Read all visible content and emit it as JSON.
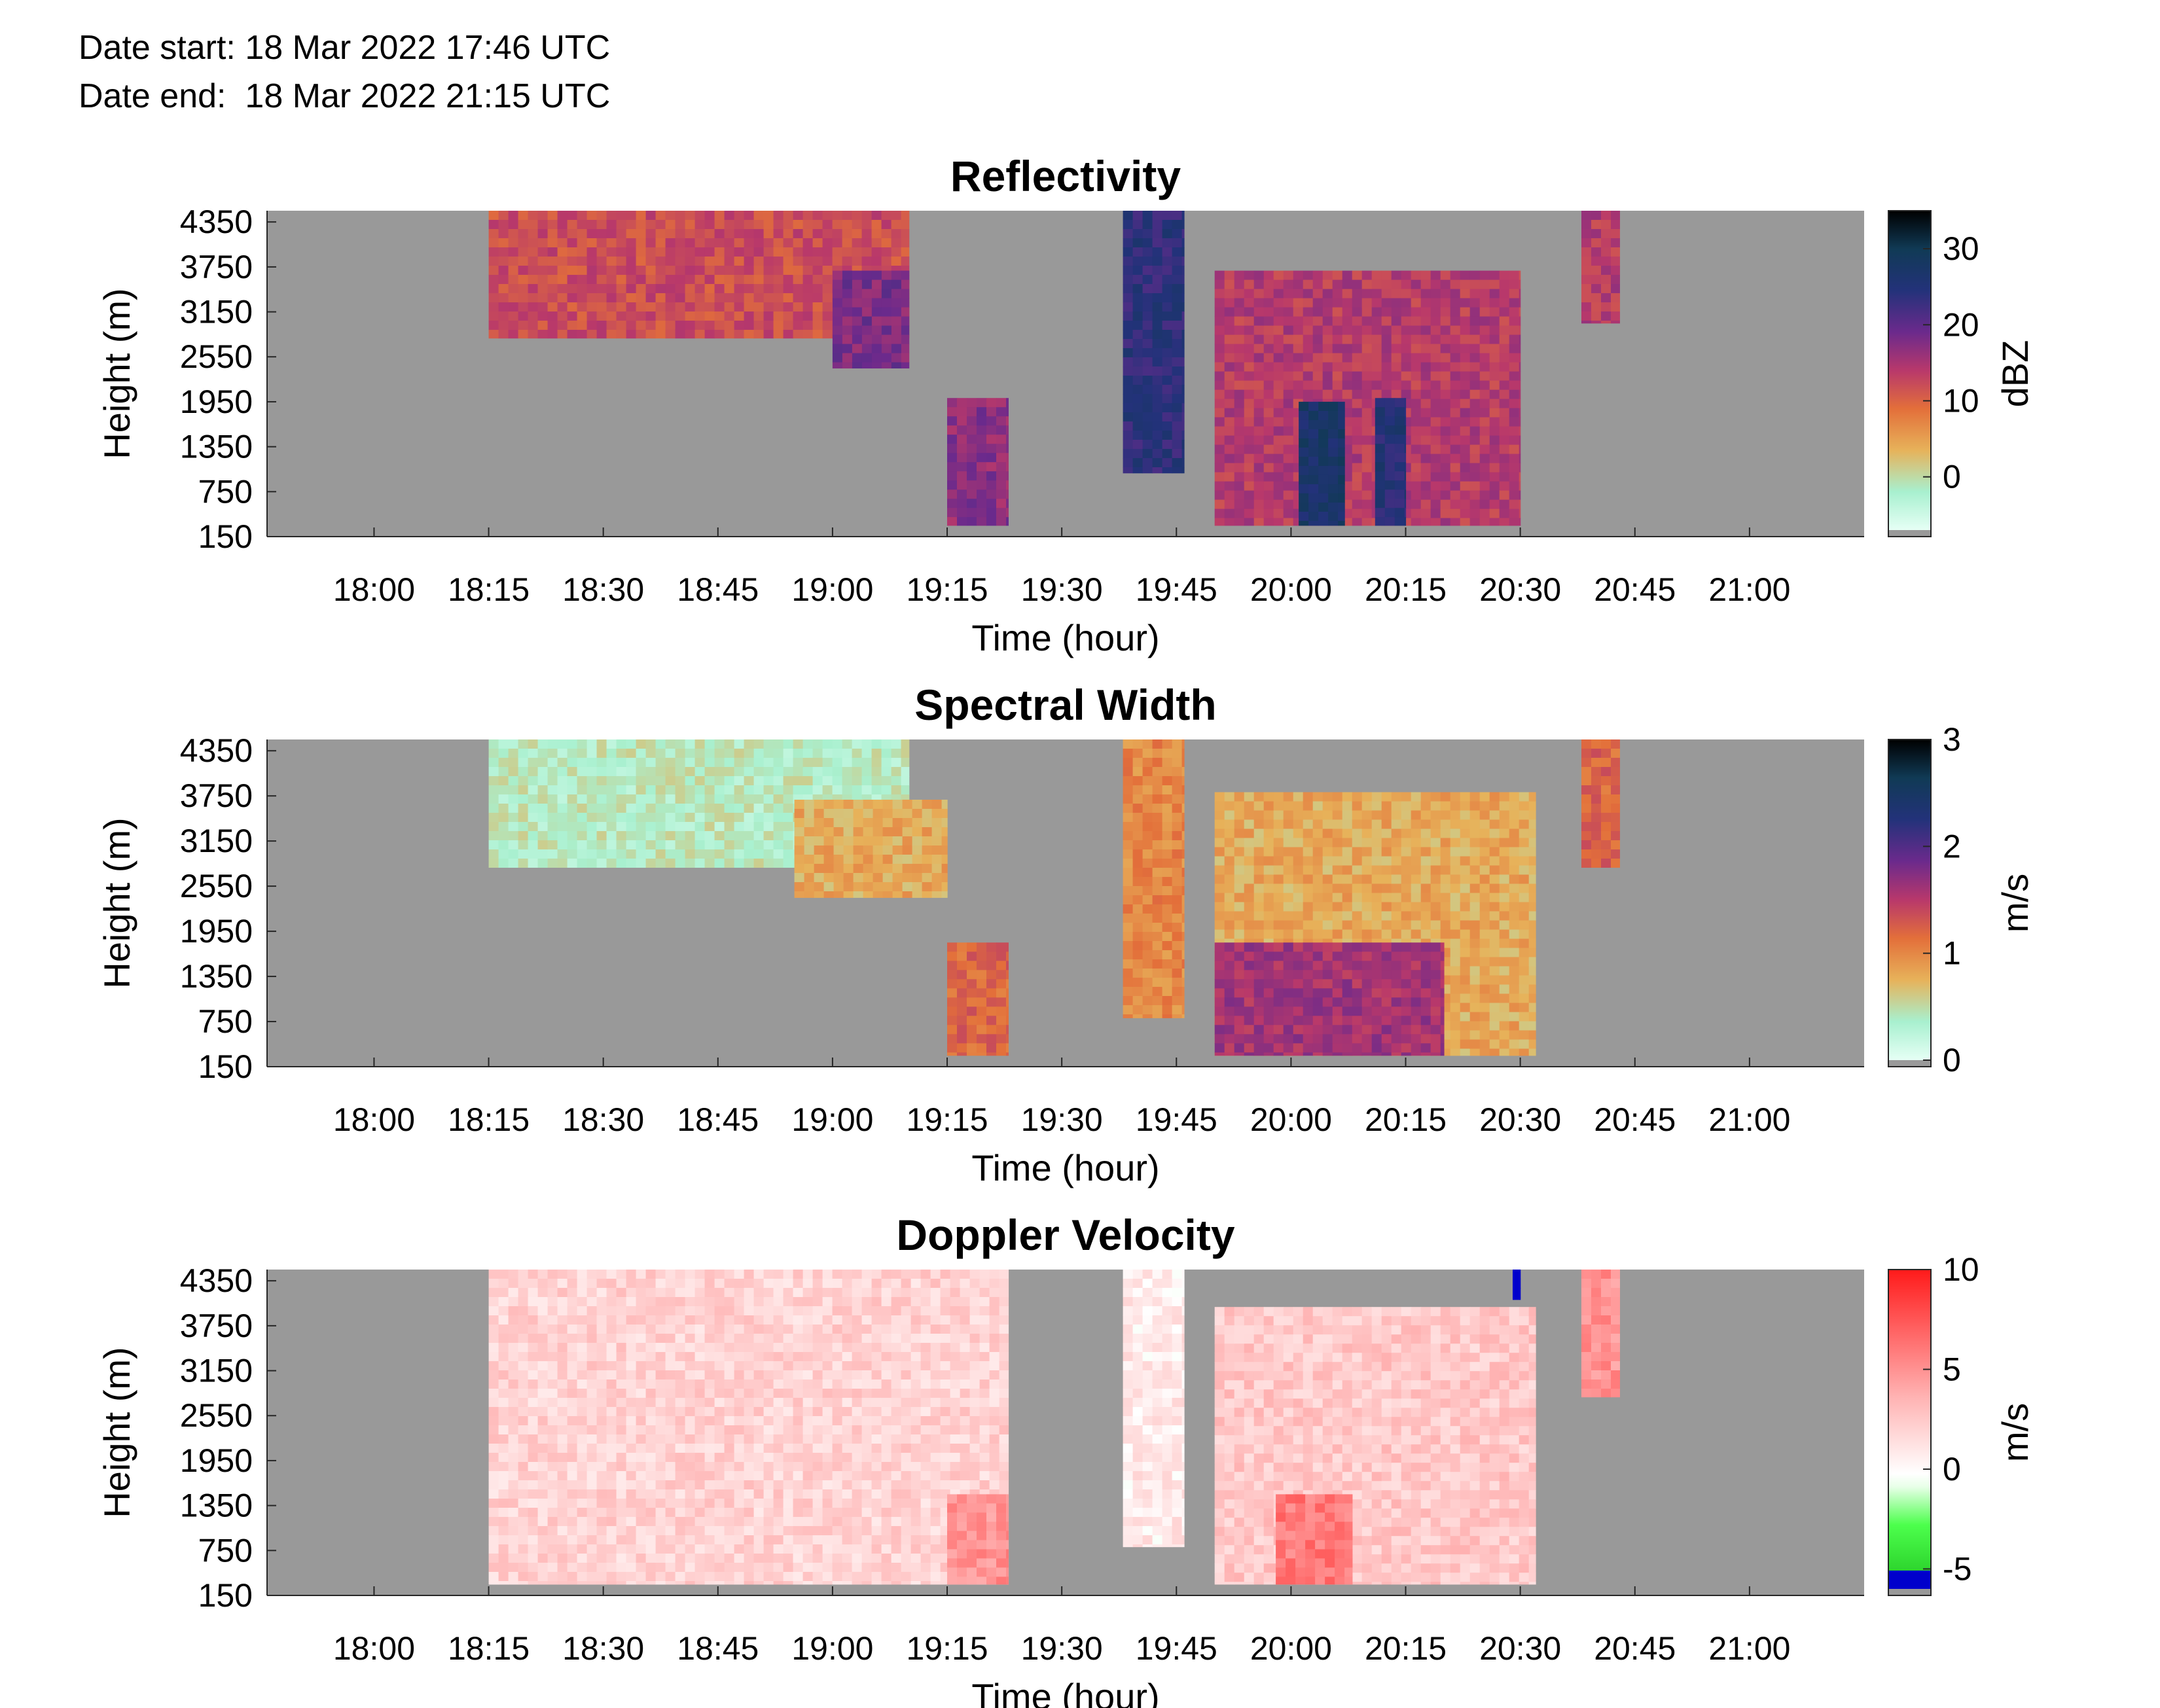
{
  "header": {
    "start_label": "Date start:",
    "start_value": "18 Mar 2022 17:46 UTC",
    "end_label": "Date end:",
    "end_value": "18 Mar 2022 21:15 UTC"
  },
  "chart_data": [
    {
      "type": "heatmap",
      "title": "Reflectivity",
      "xlabel": "Time (hour)",
      "ylabel": "Height (m)",
      "xticks": [
        "18:00",
        "18:15",
        "18:30",
        "18:45",
        "19:00",
        "19:15",
        "19:30",
        "19:45",
        "20:00",
        "20:15",
        "20:30",
        "20:45",
        "21:00"
      ],
      "yticks": [
        "4350",
        "3750",
        "3150",
        "2550",
        "1950",
        "1350",
        "750",
        "150"
      ],
      "xlim": [
        "17:46",
        "21:15"
      ],
      "ylim": [
        150,
        4500
      ],
      "colorbar": {
        "label": "dBZ",
        "ticks": [
          "30",
          "20",
          "10",
          "0"
        ],
        "range": [
          -7,
          35
        ],
        "colormap": "reverse-plasma-to-mint",
        "nodata_color": "#999999"
      },
      "echoes": [
        {
          "time": [
            "18:15",
            "19:10"
          ],
          "height": [
            2800,
            4500
          ],
          "value_dBZ": 12
        },
        {
          "time": [
            "19:00",
            "19:10"
          ],
          "height": [
            2400,
            3700
          ],
          "value_dBZ": 18
        },
        {
          "time": [
            "19:15",
            "19:23"
          ],
          "height": [
            300,
            2000
          ],
          "value_dBZ": 17
        },
        {
          "time": [
            "19:38",
            "19:46"
          ],
          "height": [
            1000,
            4500
          ],
          "value_dBZ": 24
        },
        {
          "time": [
            "19:50",
            "20:30"
          ],
          "height": [
            300,
            3700
          ],
          "value_dBZ": 14
        },
        {
          "time": [
            "20:01",
            "20:07"
          ],
          "height": [
            300,
            1950
          ],
          "value_dBZ": 27
        },
        {
          "time": [
            "20:11",
            "20:15"
          ],
          "height": [
            300,
            2000
          ],
          "value_dBZ": 25
        },
        {
          "time": [
            "20:38",
            "20:43"
          ],
          "height": [
            3000,
            4500
          ],
          "value_dBZ": 14
        }
      ]
    },
    {
      "type": "heatmap",
      "title": "Spectral Width",
      "xlabel": "Time (hour)",
      "ylabel": "Height (m)",
      "xticks": [
        "18:00",
        "18:15",
        "18:30",
        "18:45",
        "19:00",
        "19:15",
        "19:30",
        "19:45",
        "20:00",
        "20:15",
        "20:30",
        "20:45",
        "21:00"
      ],
      "yticks": [
        "4350",
        "3750",
        "3150",
        "2550",
        "1950",
        "1350",
        "750",
        "150"
      ],
      "xlim": [
        "17:46",
        "21:15"
      ],
      "ylim": [
        150,
        4500
      ],
      "colorbar": {
        "label": "m/s",
        "ticks": [
          "3",
          "2",
          "1",
          "0"
        ],
        "range": [
          0,
          3
        ],
        "colormap": "reverse-plasma-to-mint",
        "nodata_color": "#999999"
      },
      "echoes": [
        {
          "time": [
            "18:15",
            "19:10"
          ],
          "height": [
            2800,
            4500
          ],
          "value_ms": 0.4
        },
        {
          "time": [
            "18:55",
            "19:15"
          ],
          "height": [
            2400,
            3700
          ],
          "value_ms": 0.8
        },
        {
          "time": [
            "19:15",
            "19:23"
          ],
          "height": [
            300,
            1800
          ],
          "value_ms": 1.2
        },
        {
          "time": [
            "19:38",
            "19:46"
          ],
          "height": [
            800,
            4500
          ],
          "value_ms": 1.0
        },
        {
          "time": [
            "19:50",
            "20:32"
          ],
          "height": [
            300,
            3800
          ],
          "value_ms": 0.8
        },
        {
          "time": [
            "19:50",
            "20:20"
          ],
          "height": [
            300,
            1800
          ],
          "value_ms": 1.6
        },
        {
          "time": [
            "20:38",
            "20:43"
          ],
          "height": [
            2800,
            4500
          ],
          "value_ms": 1.2
        }
      ]
    },
    {
      "type": "heatmap",
      "title": "Doppler Velocity",
      "xlabel": "Time (hour)",
      "ylabel": "Height (m)",
      "xticks": [
        "18:00",
        "18:15",
        "18:30",
        "18:45",
        "19:00",
        "19:15",
        "19:30",
        "19:45",
        "20:00",
        "20:15",
        "20:30",
        "20:45",
        "21:00"
      ],
      "yticks": [
        "4350",
        "3750",
        "3150",
        "2550",
        "1950",
        "1350",
        "750",
        "150"
      ],
      "xlim": [
        "17:46",
        "21:15"
      ],
      "ylim": [
        150,
        4500
      ],
      "colorbar": {
        "label": "m/s",
        "ticks": [
          "10",
          "5",
          "0",
          "-5"
        ],
        "range": [
          -6,
          10
        ],
        "colormap": "red-white-green-blue",
        "nodata_color": "#999999"
      },
      "echoes": [
        {
          "time": [
            "18:15",
            "19:23"
          ],
          "height": [
            300,
            4500
          ],
          "value_ms": 2.0
        },
        {
          "time": [
            "19:15",
            "19:23"
          ],
          "height": [
            300,
            1500
          ],
          "value_ms": 5.0
        },
        {
          "time": [
            "19:38",
            "19:46"
          ],
          "height": [
            800,
            4500
          ],
          "value_ms": 0.8
        },
        {
          "time": [
            "19:50",
            "20:32"
          ],
          "height": [
            300,
            4000
          ],
          "value_ms": 2.5
        },
        {
          "time": [
            "19:58",
            "20:08"
          ],
          "height": [
            300,
            1500
          ],
          "value_ms": 6.0
        },
        {
          "time": [
            "20:29",
            "20:30"
          ],
          "height": [
            4100,
            4500
          ],
          "value_ms": -5
        },
        {
          "time": [
            "20:38",
            "20:43"
          ],
          "height": [
            2800,
            4500
          ],
          "value_ms": 5.0
        }
      ]
    }
  ]
}
